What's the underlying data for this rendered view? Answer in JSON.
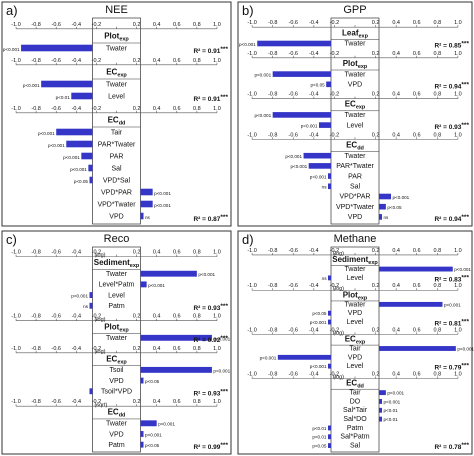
{
  "chart_data": [
    {
      "type": "bar",
      "panel_label": "a)",
      "title": "NEE",
      "xlim": [
        -1.0,
        1.0
      ],
      "ticks": [
        "-1.0",
        "-0.8",
        "-0.6",
        "-0.4",
        "-0.2",
        "0",
        "0.2",
        "0.4",
        "0.6",
        "0.8",
        "1.0"
      ],
      "groups": [
        {
          "model": "Plot",
          "sub": "exp",
          "pre": "",
          "r2": "R² = 0.91",
          "sig": "***",
          "bars": [
            {
              "label": "Twater",
              "value": -0.95,
              "p": "p<0.001"
            }
          ]
        },
        {
          "model": "EC",
          "sub": "exp",
          "pre": "",
          "r2": "R² = 0.91",
          "sig": "***",
          "bars": [
            {
              "label": "Twater",
              "value": -0.75,
              "p": "p<0.001"
            },
            {
              "label": "Level",
              "value": -0.45,
              "p": "p<0.01"
            }
          ]
        },
        {
          "model": "EC",
          "sub": "dd",
          "pre": "",
          "r2": "R² = 0.87",
          "sig": "***",
          "bars": [
            {
              "label": "Tair",
              "value": -0.6,
              "p": "p<0.001"
            },
            {
              "label": "PAR*Twater",
              "value": -0.5,
              "p": "p<0.001"
            },
            {
              "label": "PAR",
              "value": -0.35,
              "p": "p<0.001"
            },
            {
              "label": "Sal",
              "value": -0.28,
              "p": "p<0.001"
            },
            {
              "label": "VPD*Sal",
              "value": -0.22,
              "p": "p<0.05"
            },
            {
              "label": "VPD*PAR",
              "value": 0.36,
              "p": "p<0.001"
            },
            {
              "label": "VPD*Twater",
              "value": 0.36,
              "p": "p<0.001"
            },
            {
              "label": "VPD",
              "value": 0.1,
              "p": "ns"
            }
          ]
        }
      ]
    },
    {
      "type": "bar",
      "panel_label": "b)",
      "title": "GPP",
      "xlim": [
        -1.0,
        1.0
      ],
      "ticks": [
        "-1.0",
        "-0.8",
        "-0.6",
        "-0.4",
        "-0.2",
        "0",
        "0.2",
        "0.4",
        "0.6",
        "0.8",
        "1.0"
      ],
      "groups": [
        {
          "model": "Leaf",
          "sub": "exp",
          "pre": "",
          "r2": "R² = 0.85",
          "sig": "***",
          "bars": [
            {
              "label": "Twater",
              "value": -0.95,
              "p": "p<0.001"
            }
          ]
        },
        {
          "model": "Plot",
          "sub": "exp",
          "pre": "",
          "r2": "R² = 0.94",
          "sig": "***",
          "bars": [
            {
              "label": "Twater",
              "value": -0.8,
              "p": "p<0.001"
            },
            {
              "label": "VPD",
              "value": -0.28,
              "p": "p<0.05"
            }
          ]
        },
        {
          "model": "EC",
          "sub": "exp",
          "pre": "",
          "r2": "R² = 0.93",
          "sig": "***",
          "bars": [
            {
              "label": "Twater",
              "value": -0.8,
              "p": "p<0.001"
            },
            {
              "label": "Level",
              "value": -0.35,
              "p": "p<0.001"
            }
          ]
        },
        {
          "model": "EC",
          "sub": "dd",
          "pre": "",
          "r2": "R² = 0.94",
          "sig": "***",
          "bars": [
            {
              "label": "Twater",
              "value": -0.5,
              "p": "p<0.001"
            },
            {
              "label": "PAR*Twater",
              "value": -0.45,
              "p": "p<0.001"
            },
            {
              "label": "PAR",
              "value": -0.2,
              "p": "p<0.001"
            },
            {
              "label": "Sal",
              "value": -0.12,
              "p": "ns"
            },
            {
              "label": "VPD*PAR",
              "value": 0.35,
              "p": "p<0.001"
            },
            {
              "label": "VPD*Twater",
              "value": 0.3,
              "p": "p<0.05"
            },
            {
              "label": "VPD",
              "value": 0.05,
              "p": "ns"
            }
          ]
        }
      ]
    },
    {
      "type": "bar",
      "panel_label": "c)",
      "title": "Reco",
      "xlim": [
        -1.0,
        1.0
      ],
      "ticks": [
        "-1.0",
        "-0.8",
        "-0.6",
        "-0.4",
        "-0.2",
        "0",
        "0.2",
        "0.4",
        "0.6",
        "0.8",
        "1.0"
      ],
      "groups": [
        {
          "model": "Sediment",
          "sub": "exp",
          "pre": "(log)",
          "r2": "R² = 0.93",
          "sig": "***",
          "bars": [
            {
              "label": "Twater",
              "value": 0.8,
              "p": "p<0.001"
            },
            {
              "label": "Level*Patm",
              "value": 0.3,
              "p": "p<0.001"
            },
            {
              "label": "Level",
              "value": -0.1,
              "p": "p<0.001"
            },
            {
              "label": "Patm",
              "value": -0.05,
              "p": "ns"
            }
          ]
        },
        {
          "model": "Plot",
          "sub": "exp",
          "pre": "(log)",
          "r2": "R² = 0.92",
          "sig": "***",
          "bars": [
            {
              "label": "Twater",
              "value": 0.95,
              "p": "p<0.001"
            }
          ]
        },
        {
          "model": "EC",
          "sub": "exp",
          "pre": "(log)",
          "r2": "R² = 0.93",
          "sig": "***",
          "bars": [
            {
              "label": "Tsoil",
              "value": 0.95,
              "p": "p<0.001"
            },
            {
              "label": "VPD",
              "value": 0.2,
              "p": "p<0.05"
            },
            {
              "label": "Tsoil*VPD",
              "value": -0.2,
              "p": ""
            }
          ]
        },
        {
          "model": "EC",
          "sub": "dd",
          "pre": "(sqrt)",
          "r2": "R² = 0.99",
          "sig": "***",
          "bars": [
            {
              "label": "Twater",
              "value": 0.4,
              "p": "p<0.001"
            },
            {
              "label": "VPD",
              "value": 0.25,
              "p": "p<0.001"
            },
            {
              "label": "Patm",
              "value": 0.03,
              "p": "p<0.05"
            }
          ]
        }
      ]
    },
    {
      "type": "bar",
      "panel_label": "d)",
      "title": "Methane",
      "xlim": [
        -1.0,
        1.0
      ],
      "ticks": [
        "-1.0",
        "-0.8",
        "-0.6",
        "-0.4",
        "-0.2",
        "0",
        "0.2",
        "0.4",
        "0.6",
        "0.8",
        "1.0"
      ],
      "groups": [
        {
          "model": "Sediment",
          "sub": "exp",
          "pre": "(log)",
          "r2": "R² = 0.83",
          "sig": "***",
          "bars": [
            {
              "label": "Twater",
              "value": 0.95,
              "p": "p<0.001"
            },
            {
              "label": "Level",
              "value": -0.03,
              "p": "ns"
            }
          ]
        },
        {
          "model": "Plot",
          "sub": "exp",
          "pre": "(log)",
          "r2": "R² = 0.81",
          "sig": "***",
          "bars": [
            {
              "label": "Twater",
              "value": 0.85,
              "p": "p<0.001"
            },
            {
              "label": "VPD",
              "value": -0.2,
              "p": "p<0.05"
            },
            {
              "label": "Level",
              "value": -0.22,
              "p": "p<0.001"
            }
          ]
        },
        {
          "model": "EC",
          "sub": "exp",
          "pre": "(log)",
          "r2": "R² = 0.79",
          "sig": "***",
          "bars": [
            {
              "label": "Tair",
              "value": 0.98,
              "p": "p<0.001"
            },
            {
              "label": "VPD",
              "value": -0.75,
              "p": "p<0.001"
            },
            {
              "label": "Level",
              "value": -0.2,
              "p": "p<0.001"
            }
          ]
        },
        {
          "model": "EC",
          "sub": "dd",
          "pre": "(log)",
          "r2": "R² = 0.78",
          "sig": "***",
          "bars": [
            {
              "label": "Tair",
              "value": 0.3,
              "p": "p<0.001"
            },
            {
              "label": "DO",
              "value": 0.05,
              "p": "p<0.001"
            },
            {
              "label": "Sal*Tair",
              "value": 0.05,
              "p": "p<0.01"
            },
            {
              "label": "Sal*DO",
              "value": 0.05,
              "p": "p<0.01"
            },
            {
              "label": "Patm",
              "value": -0.08,
              "p": "p<0.01"
            },
            {
              "label": "Sal*Patm",
              "value": -0.05,
              "p": "p<0.01"
            },
            {
              "label": "Sal",
              "value": -0.03,
              "p": "p<0.05"
            }
          ]
        }
      ]
    }
  ],
  "colors": {
    "bar": "#3535c8",
    "border": "#333333",
    "text": "#111111",
    "grid": "#555555"
  }
}
